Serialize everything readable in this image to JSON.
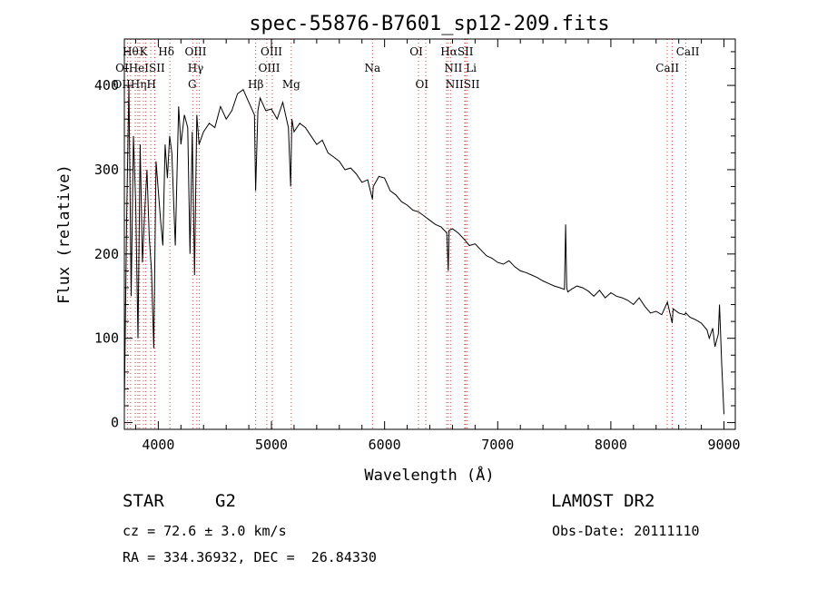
{
  "chart_data": {
    "type": "line",
    "title": "spec-55876-B7601_sp12-209.fits",
    "xlabel": "Wavelength (Å)",
    "ylabel": "Flux (relative)",
    "xlim": [
      3700,
      9100
    ],
    "ylim": [
      -8,
      455
    ],
    "x_ticks": [
      4000,
      5000,
      6000,
      7000,
      8000,
      9000
    ],
    "y_ticks": [
      0,
      100,
      200,
      300,
      400
    ],
    "grid": false,
    "series": [
      {
        "color": "#000000",
        "x": [
          3700,
          3720,
          3740,
          3760,
          3780,
          3800,
          3820,
          3840,
          3860,
          3880,
          3900,
          3920,
          3940,
          3960,
          3980,
          4000,
          4020,
          4040,
          4060,
          4080,
          4100,
          4120,
          4150,
          4180,
          4200,
          4230,
          4260,
          4280,
          4300,
          4320,
          4340,
          4360,
          4400,
          4450,
          4500,
          4550,
          4600,
          4650,
          4700,
          4750,
          4800,
          4850,
          4860,
          4880,
          4900,
          4950,
          5000,
          5050,
          5100,
          5150,
          5170,
          5180,
          5200,
          5250,
          5300,
          5350,
          5400,
          5450,
          5500,
          5550,
          5600,
          5650,
          5700,
          5750,
          5800,
          5850,
          5893,
          5900,
          5950,
          6000,
          6050,
          6100,
          6150,
          6200,
          6250,
          6300,
          6350,
          6400,
          6450,
          6500,
          6550,
          6563,
          6570,
          6600,
          6650,
          6700,
          6750,
          6800,
          6850,
          6900,
          6950,
          7000,
          7050,
          7100,
          7150,
          7200,
          7250,
          7300,
          7350,
          7400,
          7450,
          7500,
          7550,
          7590,
          7600,
          7610,
          7620,
          7650,
          7700,
          7750,
          7800,
          7850,
          7900,
          7950,
          8000,
          8050,
          8100,
          8150,
          8200,
          8250,
          8300,
          8350,
          8400,
          8450,
          8500,
          8542,
          8550,
          8600,
          8650,
          8662,
          8700,
          8750,
          8800,
          8850,
          8870,
          8900,
          8920,
          8950,
          8960,
          8980,
          9000
        ],
        "y": [
          20,
          240,
          400,
          150,
          340,
          260,
          100,
          330,
          190,
          250,
          300,
          220,
          180,
          88,
          310,
          275,
          240,
          210,
          330,
          290,
          340,
          320,
          210,
          375,
          330,
          365,
          350,
          200,
          345,
          175,
          365,
          330,
          345,
          355,
          350,
          375,
          360,
          370,
          390,
          395,
          380,
          365,
          275,
          370,
          385,
          370,
          372,
          360,
          380,
          350,
          280,
          360,
          345,
          355,
          350,
          340,
          330,
          335,
          320,
          315,
          310,
          300,
          302,
          295,
          285,
          288,
          265,
          280,
          292,
          290,
          275,
          270,
          262,
          258,
          252,
          250,
          245,
          240,
          235,
          232,
          225,
          180,
          228,
          230,
          225,
          218,
          210,
          212,
          205,
          198,
          195,
          190,
          188,
          192,
          185,
          180,
          178,
          175,
          172,
          168,
          165,
          162,
          160,
          158,
          235,
          160,
          155,
          158,
          162,
          160,
          156,
          150,
          157,
          148,
          154,
          150,
          148,
          145,
          140,
          148,
          138,
          130,
          132,
          128,
          143,
          118,
          135,
          130,
          128,
          130,
          125,
          122,
          118,
          110,
          100,
          112,
          90,
          105,
          140,
          70,
          10
        ]
      }
    ],
    "emission_lines": [
      {
        "label": "OII",
        "x": 3727
      },
      {
        "label": "OIII",
        "x": 3755
      },
      {
        "label": "Hθ",
        "x": 3797
      },
      {
        "label": "HeI",
        "x": 3820
      },
      {
        "label": "Hη",
        "x": 3835
      },
      {
        "label": "K",
        "x": 3869
      },
      {
        "label": "SII",
        "x": 3889
      },
      {
        "label": "Hδ",
        "x": 3933
      },
      {
        "label": "H",
        "x": 3969
      },
      {
        "label": "OIII",
        "x": 4102
      },
      {
        "label": "Hγ",
        "x": 4304
      },
      {
        "label": "G",
        "x": 4341
      },
      {
        "label": "OIII",
        "x": 4363
      },
      {
        "label": "Hβ",
        "x": 4861
      },
      {
        "label": "OIII",
        "x": 4959
      },
      {
        "label": "OIII",
        "x": 5007
      },
      {
        "label": "Mg",
        "x": 5175
      },
      {
        "label": "Na",
        "x": 5893
      },
      {
        "label": "OI",
        "x": 6300
      },
      {
        "label": "OI",
        "x": 6364
      },
      {
        "label": "NII",
        "x": 6548
      },
      {
        "label": "Hα",
        "x": 6563
      },
      {
        "label": "NII",
        "x": 6583
      },
      {
        "label": "SII",
        "x": 6717
      },
      {
        "label": "Li",
        "x": 6708
      },
      {
        "label": "SII",
        "x": 6731
      },
      {
        "label": "CaII",
        "x": 8498
      },
      {
        "label": "CaII",
        "x": 8542
      },
      {
        "label": "CaII",
        "x": 8662
      }
    ],
    "line_label_rows": [
      [
        {
          "text": "Hθ",
          "x": 3755
        },
        {
          "text": "K",
          "x": 3869
        },
        {
          "text": "Hδ",
          "x": 4070
        },
        {
          "text": "OIII",
          "x": 4330
        },
        {
          "text": "OIII",
          "x": 5000
        },
        {
          "text": "OI",
          "x": 6280
        },
        {
          "text": "HαSII",
          "x": 6640
        },
        {
          "text": "CaII",
          "x": 8680
        }
      ],
      [
        {
          "text": "OIHeISII",
          "x": 3840
        },
        {
          "text": "Hγ",
          "x": 4330
        },
        {
          "text": "OIII",
          "x": 4980
        },
        {
          "text": "Na",
          "x": 5893
        },
        {
          "text": "NII Li",
          "x": 6670
        },
        {
          "text": "CaII",
          "x": 8500
        }
      ],
      [
        {
          "text": "OIIHηH",
          "x": 3790
        },
        {
          "text": "G",
          "x": 4300
        },
        {
          "text": "Hβ",
          "x": 4861
        },
        {
          "text": "Mg",
          "x": 5175
        },
        {
          "text": "OI",
          "x": 6330
        },
        {
          "text": "NIISII",
          "x": 6690
        }
      ]
    ]
  },
  "info": {
    "object_type": "STAR",
    "subclass": "G2",
    "survey": "LAMOST DR2",
    "redshift": "cz = 72.6 ± 3.0 km/s",
    "obs_date": "Obs-Date: 20111110",
    "coords": "RA = 334.36932, DEC =  26.84330"
  }
}
